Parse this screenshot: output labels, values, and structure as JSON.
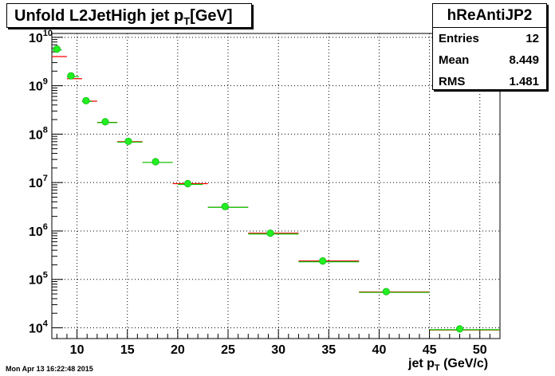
{
  "title": {
    "main": "Unfold L2JetHigh jet p",
    "sub": "T",
    "suffix": "[GeV]"
  },
  "stats": {
    "name": "hReAntiJP2",
    "rows": [
      {
        "label": "Entries",
        "value": "12"
      },
      {
        "label": "Mean",
        "value": "8.449"
      },
      {
        "label": "RMS",
        "value": "1.481"
      }
    ]
  },
  "footer": "Mon Apr 13 16:22:48 2015",
  "xlabel": {
    "main": "jet p",
    "sub": "T",
    "suffix": " (GeV/c)"
  },
  "colors": {
    "red_series": "#ff0000",
    "green_series": "#00cc00",
    "marker": "#22ee22"
  },
  "chart_data": {
    "type": "scatter",
    "xlim": [
      7.5,
      52
    ],
    "ylim": [
      6000,
      12000000000
    ],
    "yscale": "log",
    "grid": true,
    "x_ticks": [
      10,
      15,
      20,
      25,
      30,
      35,
      40,
      45,
      50
    ],
    "y_ticks": [
      {
        "v": 10000,
        "base": "10",
        "exp": "4"
      },
      {
        "v": 100000,
        "base": "10",
        "exp": "5"
      },
      {
        "v": 1000000,
        "base": "10",
        "exp": "6"
      },
      {
        "v": 10000000,
        "base": "10",
        "exp": "7"
      },
      {
        "v": 100000000,
        "base": "10",
        "exp": "8"
      },
      {
        "v": 1000000000,
        "base": "10",
        "exp": "9"
      },
      {
        "v": 10000000000,
        "base": "10",
        "exp": "10"
      }
    ],
    "series": [
      {
        "color": "#ff0000",
        "points": [
          {
            "x0": 7.5,
            "x1": 9.0,
            "y": 4000000000
          },
          {
            "x0": 9.0,
            "x1": 10.5,
            "y": 1400000000
          },
          {
            "x0": 10.5,
            "x1": 12.0,
            "y": 480000000
          },
          {
            "x0": 12.0,
            "x1": 14.0,
            "y": 175000000
          },
          {
            "x0": 14.0,
            "x1": 16.5,
            "y": 70000000
          },
          {
            "x0": 16.5,
            "x1": 19.5,
            "y": 26000000
          },
          {
            "x0": 19.5,
            "x1": 23.0,
            "y": 9500000
          },
          {
            "x0": 23.0,
            "x1": 27.0,
            "y": 3100000
          },
          {
            "x0": 27.0,
            "x1": 32.0,
            "y": 900000
          },
          {
            "x0": 32.0,
            "x1": 38.0,
            "y": 240000
          },
          {
            "x0": 38.0,
            "x1": 45.0,
            "y": 55000
          },
          {
            "x0": 45.0,
            "x1": 52.0,
            "y": 9000
          }
        ]
      },
      {
        "color": "#00cc00",
        "points": [
          {
            "x": 8.0,
            "y": 5700000000,
            "x0": 7.5,
            "x1": 8.5
          },
          {
            "x": 9.4,
            "y": 1600000000,
            "x0": 9.0,
            "x1": 10.2
          },
          {
            "x": 10.9,
            "y": 490000000,
            "x0": 10.5,
            "x1": 11.5
          },
          {
            "x": 12.8,
            "y": 180000000,
            "x0": 12.0,
            "x1": 14.0
          },
          {
            "x": 15.1,
            "y": 71000000,
            "x0": 14.0,
            "x1": 16.5
          },
          {
            "x": 17.8,
            "y": 27000000,
            "x0": 16.5,
            "x1": 19.5
          },
          {
            "x": 21.0,
            "y": 9500000,
            "x0": 20.0,
            "x1": 22.5
          },
          {
            "x": 24.7,
            "y": 3200000,
            "x0": 23.0,
            "x1": 27.0
          },
          {
            "x": 29.2,
            "y": 900000,
            "x0": 27.0,
            "x1": 32.0
          },
          {
            "x": 34.4,
            "y": 240000,
            "x0": 32.0,
            "x1": 38.0
          },
          {
            "x": 40.7,
            "y": 56000,
            "x0": 38.0,
            "x1": 45.0
          },
          {
            "x": 48.0,
            "y": 9500,
            "x0": 45.0,
            "x1": 52.0
          }
        ]
      }
    ]
  }
}
